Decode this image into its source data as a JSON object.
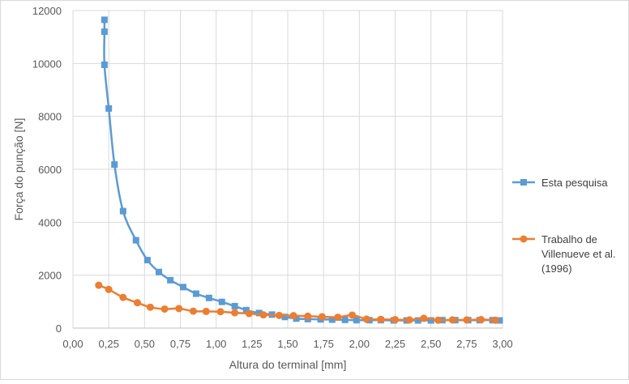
{
  "chart_data": {
    "type": "line",
    "title": "",
    "xlabel": "Altura do terminal [mm]",
    "ylabel": "Força do punção [N]",
    "xlim": [
      0,
      3.0
    ],
    "ylim": [
      0,
      12000
    ],
    "x_ticks": [
      0,
      0.25,
      0.5,
      0.75,
      1.0,
      1.25,
      1.5,
      1.75,
      2.0,
      2.25,
      2.5,
      2.75,
      3.0
    ],
    "x_tick_labels": [
      "0,00",
      "0,25",
      "0,50",
      "0,75",
      "1,00",
      "1,25",
      "1,50",
      "1,75",
      "2,00",
      "2,25",
      "2,50",
      "2,75",
      "3,00"
    ],
    "y_ticks": [
      0,
      2000,
      4000,
      6000,
      8000,
      10000,
      12000
    ],
    "y_tick_labels": [
      "0",
      "2000",
      "4000",
      "6000",
      "8000",
      "10000",
      "12000"
    ],
    "grid": true,
    "legend_position": "right",
    "series": [
      {
        "name": "Esta pesquisa",
        "color": "#5B9BD5",
        "marker": "square",
        "x": [
          0.22,
          0.22,
          0.22,
          0.25,
          0.29,
          0.35,
          0.44,
          0.52,
          0.6,
          0.68,
          0.77,
          0.86,
          0.95,
          1.04,
          1.13,
          1.21,
          1.3,
          1.39,
          1.48,
          1.56,
          1.64,
          1.73,
          1.81,
          1.9,
          1.98,
          2.07,
          2.15,
          2.24,
          2.33,
          2.41,
          2.5,
          2.58,
          2.67,
          2.76,
          2.84,
          2.93,
          2.98
        ],
        "y": [
          11650,
          11200,
          9950,
          8300,
          6180,
          4420,
          3320,
          2570,
          2120,
          1810,
          1550,
          1300,
          1140,
          990,
          830,
          680,
          570,
          510,
          420,
          360,
          340,
          330,
          320,
          310,
          300,
          300,
          300,
          290,
          290,
          290,
          290,
          300,
          300,
          300,
          300,
          300,
          290
        ]
      },
      {
        "name": "Trabalho de Villenueve et al. (1996)",
        "name_lines": [
          "Trabalho de",
          "Villenueve et al.",
          "(1996)"
        ],
        "color": "#ED7D31",
        "marker": "circle",
        "x": [
          0.18,
          0.25,
          0.35,
          0.45,
          0.54,
          0.64,
          0.74,
          0.84,
          0.93,
          1.03,
          1.13,
          1.23,
          1.33,
          1.44,
          1.54,
          1.64,
          1.74,
          1.85,
          1.95,
          2.05,
          2.15,
          2.25,
          2.35,
          2.45,
          2.55,
          2.65,
          2.75,
          2.85,
          2.95
        ],
        "y": [
          1620,
          1460,
          1160,
          960,
          790,
          720,
          740,
          640,
          630,
          620,
          580,
          550,
          500,
          480,
          470,
          450,
          430,
          410,
          490,
          340,
          330,
          320,
          310,
          370,
          300,
          310,
          310,
          320,
          300
        ]
      }
    ]
  }
}
